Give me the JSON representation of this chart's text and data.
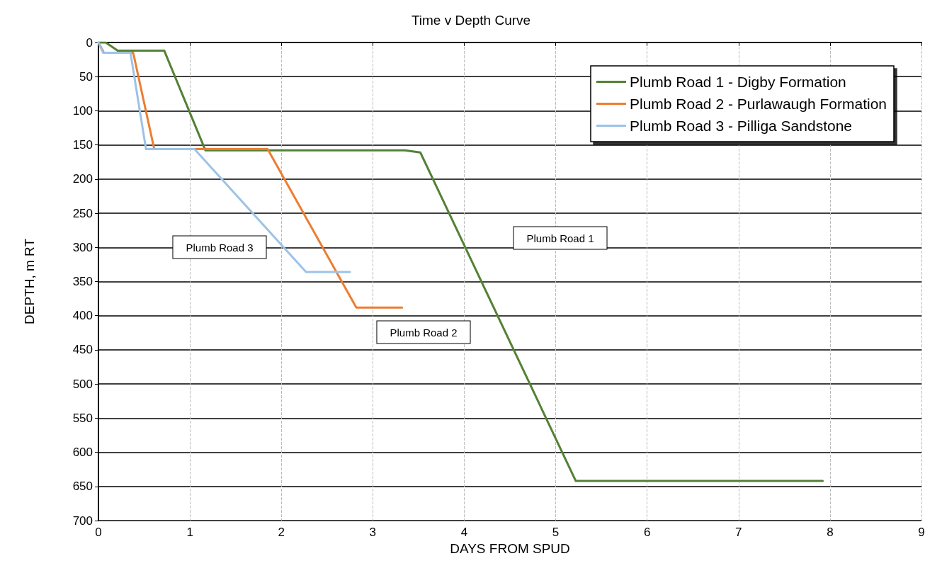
{
  "chart_data": {
    "type": "line",
    "title": "Time v Depth Curve",
    "xlabel": "DAYS FROM SPUD",
    "ylabel": "DEPTH, m RT",
    "xlim": [
      0,
      9
    ],
    "xticks": [
      0,
      1,
      2,
      3,
      4,
      5,
      6,
      7,
      8,
      9
    ],
    "ylim": [
      700,
      0
    ],
    "yticks": [
      0,
      50,
      100,
      150,
      200,
      250,
      300,
      350,
      400,
      450,
      500,
      550,
      600,
      650,
      700
    ],
    "grid": true,
    "legend": "top right",
    "marker": "none",
    "line_style": "solid",
    "series": [
      {
        "name": "Plumb Road 1 - Digby Formation",
        "color": "#538135",
        "x": [
          0,
          0.08,
          0.21,
          0.72,
          1.17,
          3.35,
          3.52,
          5.22,
          7.92
        ],
        "values": [
          0,
          0,
          12,
          12,
          158,
          158,
          161,
          642,
          642
        ]
      },
      {
        "name": "Plumb Road 2 - Purlawaugh Formation",
        "color": "#ed7d31",
        "x": [
          0,
          0.06,
          0.38,
          0.61,
          1.85,
          2.82,
          3.32
        ],
        "values": [
          0,
          15,
          15,
          156,
          156,
          388,
          388
        ]
      },
      {
        "name": "Plumb Road 3 - Pilliga Sandstone",
        "color": "#9dc3e6",
        "x": [
          0,
          0.05,
          0.35,
          0.52,
          1.05,
          2.27,
          2.75
        ],
        "values": [
          0,
          15,
          15,
          156,
          156,
          336,
          336
        ]
      }
    ],
    "annotations": [
      "Plumb Road 3",
      "Plumb Road 1",
      "Plumb Road 2"
    ]
  }
}
